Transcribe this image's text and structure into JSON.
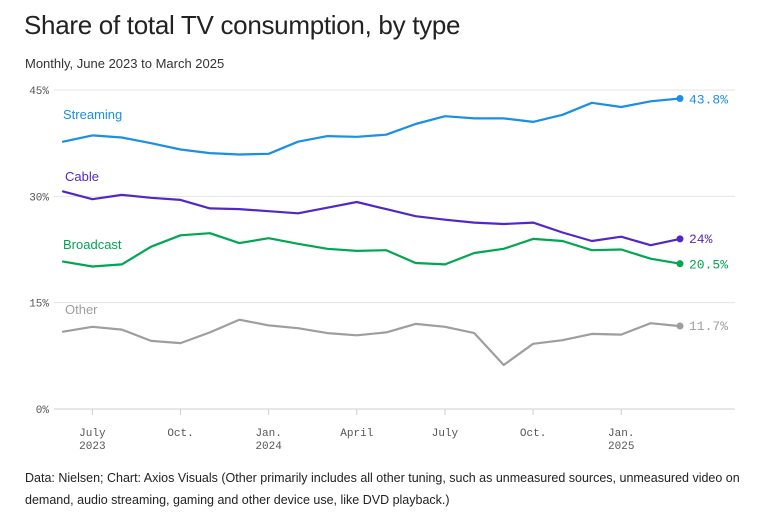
{
  "title": "Share of total TV consumption, by type",
  "subtitle": "Monthly, June 2023 to March 2025",
  "footer": "Data: Nielsen; Chart: Axios Visuals (Other primarily includes all other tuning, such as unmeasured sources, unmeasured video on demand, audio streaming, gaming and other device use, like DVD playback.)",
  "chart_data": {
    "type": "line",
    "x": [
      "2023-06",
      "2023-07",
      "2023-08",
      "2023-09",
      "2023-10",
      "2023-11",
      "2023-12",
      "2024-01",
      "2024-02",
      "2024-03",
      "2024-04",
      "2024-05",
      "2024-06",
      "2024-07",
      "2024-08",
      "2024-09",
      "2024-10",
      "2024-11",
      "2024-12",
      "2025-01",
      "2025-02",
      "2025-03"
    ],
    "ylim": [
      0,
      45
    ],
    "yticks": [
      0,
      15,
      30,
      45
    ],
    "ytick_labels": [
      "0%",
      "15%",
      "30%",
      "45%"
    ],
    "xticks": [
      {
        "x": "2023-07",
        "lines": [
          "July",
          "2023"
        ]
      },
      {
        "x": "2023-10",
        "lines": [
          "Oct.",
          ""
        ]
      },
      {
        "x": "2024-01",
        "lines": [
          "Jan.",
          "2024"
        ]
      },
      {
        "x": "2024-04",
        "lines": [
          "April",
          ""
        ]
      },
      {
        "x": "2024-07",
        "lines": [
          "July",
          ""
        ]
      },
      {
        "x": "2024-10",
        "lines": [
          "Oct.",
          ""
        ]
      },
      {
        "x": "2025-01",
        "lines": [
          "Jan.",
          "2025"
        ]
      }
    ],
    "grid": true,
    "series": [
      {
        "name": "Streaming",
        "color": "#1a8fe3",
        "end_label": "43.8%",
        "values": [
          37.7,
          38.6,
          38.3,
          37.5,
          36.6,
          36.1,
          35.9,
          36.0,
          37.7,
          38.5,
          38.4,
          38.7,
          40.2,
          41.3,
          41.0,
          41.0,
          40.5,
          41.5,
          43.2,
          42.6,
          43.4,
          43.8
        ]
      },
      {
        "name": "Cable",
        "color": "#5128c7",
        "end_label": "24%",
        "values": [
          30.7,
          29.6,
          30.2,
          29.8,
          29.5,
          28.3,
          28.2,
          27.9,
          27.6,
          28.4,
          29.2,
          28.2,
          27.2,
          26.7,
          26.3,
          26.1,
          26.3,
          24.9,
          23.7,
          24.3,
          23.1,
          24.0
        ]
      },
      {
        "name": "Broadcast",
        "color": "#00a652",
        "end_label": "20.5%",
        "values": [
          20.8,
          20.1,
          20.4,
          22.9,
          24.5,
          24.8,
          23.4,
          24.1,
          23.3,
          22.6,
          22.3,
          22.4,
          20.6,
          20.4,
          22.0,
          22.6,
          24.0,
          23.7,
          22.4,
          22.5,
          21.2,
          20.5
        ]
      },
      {
        "name": "Other",
        "color": "#9e9e9e",
        "end_label": "11.7%",
        "values": [
          10.9,
          11.6,
          11.2,
          9.6,
          9.3,
          10.8,
          12.6,
          11.8,
          11.4,
          10.7,
          10.4,
          10.8,
          12.0,
          11.6,
          10.7,
          6.2,
          9.2,
          9.7,
          10.6,
          10.5,
          12.1,
          11.7
        ]
      }
    ]
  }
}
